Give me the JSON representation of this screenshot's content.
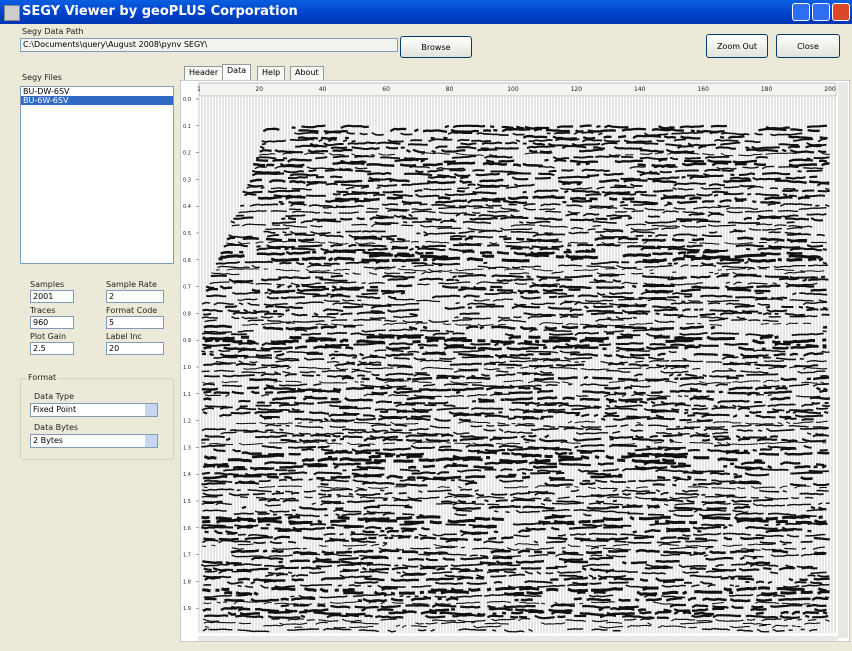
{
  "window": {
    "title": "SEGY Viewer by geoPLUS Corporation"
  },
  "path_section": {
    "label": "Segy Data Path",
    "value": "C:\\Documents\\query\\August 2008\\pynv SEGY\\",
    "browse": "Browse"
  },
  "buttons": {
    "zoom_out": "Zoom Out",
    "close": "Close"
  },
  "files": {
    "label": "Segy Files",
    "items": [
      "BU-DW-6SV",
      "BU-6W-6SV"
    ]
  },
  "tabs": [
    "Header",
    "Data",
    "Help",
    "About"
  ],
  "fields": [
    {
      "label": "Samples",
      "value": "2001"
    },
    {
      "label": "Sample Rate",
      "value": "2"
    },
    {
      "label": "Traces",
      "value": "960"
    },
    {
      "label": "Format Code",
      "value": "5"
    },
    {
      "label": "Plot Gain",
      "value": "2.5"
    },
    {
      "label": "Label Inc",
      "value": "20"
    }
  ],
  "format": {
    "label": "Format",
    "data_type_label": "Data Type",
    "data_type": "Fixed Point",
    "data_bytes_label": "Data Bytes",
    "data_bytes": "2 Bytes"
  },
  "plot": {
    "x_labels": [
      1,
      20,
      40,
      60,
      80,
      100,
      120,
      140,
      160,
      180,
      200
    ],
    "y_labels": [
      "0.0",
      "0.1",
      "0.2",
      "0.3",
      "0.4",
      "0.5",
      "0.6",
      "0.7",
      "0.8",
      "0.9",
      "1.0",
      "1.1",
      "1.2",
      "1.3",
      "1.4",
      "1.5",
      "1.6",
      "1.7",
      "1.8",
      "1.9"
    ]
  }
}
